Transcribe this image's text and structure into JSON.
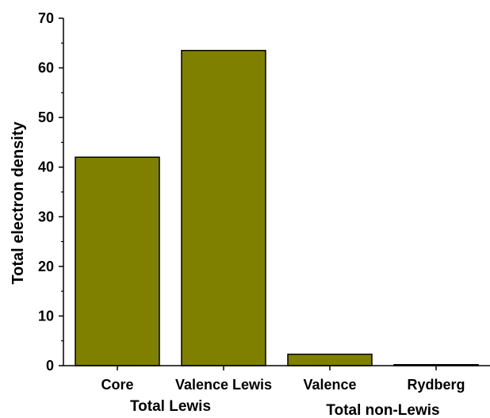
{
  "chart_data": {
    "type": "bar",
    "categories": [
      "Core",
      "Valence Lewis",
      "Valence",
      "Rydberg"
    ],
    "values": [
      42.0,
      63.5,
      2.3,
      0.2
    ],
    "groups": [
      {
        "label": "Total Lewis",
        "categories": [
          "Core",
          "Valence Lewis"
        ]
      },
      {
        "label": "Total non-Lewis",
        "categories": [
          "Valence",
          "Rydberg"
        ]
      }
    ],
    "title": "",
    "xlabel": "",
    "ylabel": "Total electron density",
    "ylim": [
      0,
      70
    ],
    "yticks": [
      0,
      10,
      20,
      30,
      40,
      50,
      60,
      70
    ],
    "grid": false,
    "legend": "none",
    "bar_color": "#808000",
    "edge_color": "#000000"
  }
}
